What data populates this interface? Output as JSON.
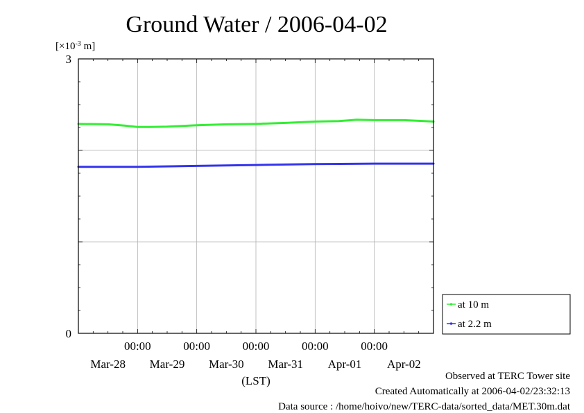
{
  "chart_data": {
    "type": "line",
    "title": "Ground Water / 2006-04-02",
    "y_unit_label": "[×10",
    "y_unit_exponent": "-3",
    "y_unit_suffix": " m]",
    "ylim": [
      0,
      3
    ],
    "yticks": [
      "3",
      "0"
    ],
    "x_range_days": [
      0,
      6
    ],
    "x_time_labels": [
      "00:00",
      "00:00",
      "00:00",
      "00:00",
      "00:00"
    ],
    "x_date_labels": [
      "Mar-28",
      "Mar-29",
      "Mar-30",
      "Mar-31",
      "Apr-01",
      "Apr-02"
    ],
    "xlabel": "(LST)",
    "grid": true,
    "legend_position": "right",
    "series": [
      {
        "name": "at 10 m",
        "color": "#33ee33",
        "x": [
          0,
          0.5,
          0.8,
          1.0,
          1.2,
          1.5,
          2.0,
          2.5,
          3.0,
          3.5,
          4.0,
          4.4,
          4.7,
          5.0,
          5.5,
          6.0
        ],
        "y": [
          2.29,
          2.285,
          2.27,
          2.255,
          2.255,
          2.26,
          2.275,
          2.285,
          2.29,
          2.3,
          2.315,
          2.32,
          2.335,
          2.33,
          2.33,
          2.315
        ]
      },
      {
        "name": "at 2.2 m",
        "color": "#3333ee",
        "x": [
          0,
          1.0,
          2.0,
          3.0,
          4.0,
          5.0,
          6.0
        ],
        "y": [
          1.82,
          1.82,
          1.83,
          1.84,
          1.85,
          1.855,
          1.855
        ]
      }
    ]
  },
  "footer": {
    "observed": "Observed at TERC Tower site",
    "created": "Created Automatically at 2006-04-02/23:32:13",
    "source": "Data source : /home/hoivo/new/TERC-data/sorted_data/MET.30m.dat"
  }
}
